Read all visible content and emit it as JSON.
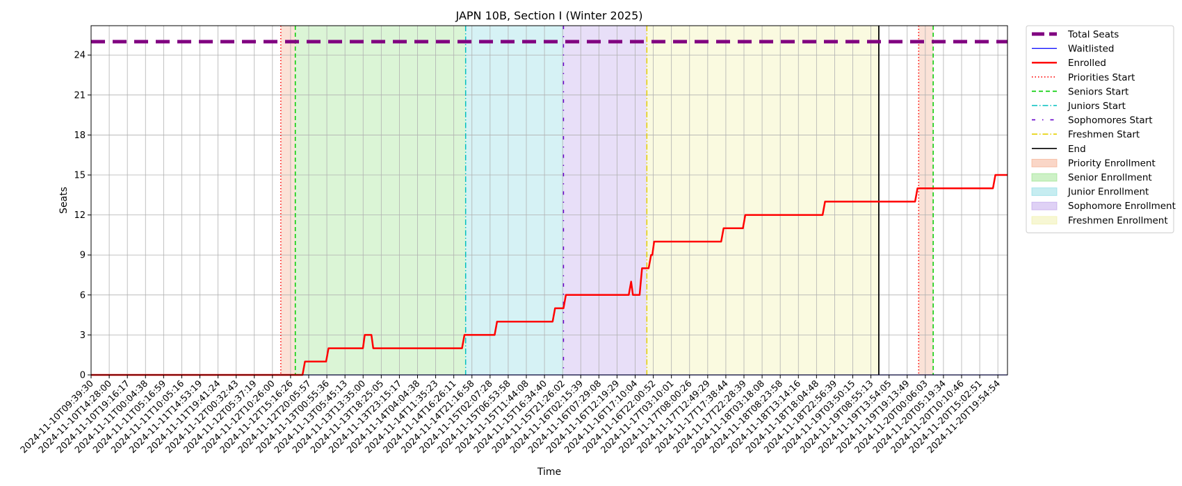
{
  "chart_data": {
    "type": "line",
    "title": "JAPN 10B, Section I (Winter 2025)",
    "xlabel": "Time",
    "ylabel": "Seats",
    "ylim": [
      0,
      26.2
    ],
    "yticks": [
      0,
      3,
      6,
      9,
      12,
      15,
      18,
      21,
      24
    ],
    "grid": true,
    "legend_position": "outside-upper-right",
    "x_start": "2024-11-10T09:39:30",
    "x_end": "2024-11-20T22:30:00",
    "xtick_labels": [
      "2024-11-10T09:39:30",
      "2024-11-10T14:28:00",
      "2024-11-10T19:16:17",
      "2024-11-11T00:04:38",
      "2024-11-11T05:16:59",
      "2024-11-11T10:05:16",
      "2024-11-11T14:53:19",
      "2024-11-11T19:41:24",
      "2024-11-12T00:32:43",
      "2024-11-12T05:37:19",
      "2024-11-12T10:26:00",
      "2024-11-12T15:16:26",
      "2024-11-12T20:05:57",
      "2024-11-13T00:55:36",
      "2024-11-13T05:45:13",
      "2024-11-13T13:35:00",
      "2024-11-13T18:25:05",
      "2024-11-13T23:15:17",
      "2024-11-14T04:04:38",
      "2024-11-14T11:35:23",
      "2024-11-14T16:26:11",
      "2024-11-14T21:16:58",
      "2024-11-15T02:07:28",
      "2024-11-15T06:53:58",
      "2024-11-15T11:44:08",
      "2024-11-15T16:34:40",
      "2024-11-15T21:26:02",
      "2024-11-16T02:15:39",
      "2024-11-16T07:29:08",
      "2024-11-16T12:19:29",
      "2024-11-16T17:10:04",
      "2024-11-16T22:00:52",
      "2024-11-17T03:10:01",
      "2024-11-17T08:00:26",
      "2024-11-17T12:49:29",
      "2024-11-17T17:38:44",
      "2024-11-17T22:28:39",
      "2024-11-18T03:18:08",
      "2024-11-18T08:23:58",
      "2024-11-18T13:14:16",
      "2024-11-18T18:04:48",
      "2024-11-18T22:56:39",
      "2024-11-19T03:50:15",
      "2024-11-19T08:55:13",
      "2024-11-19T13:54:05",
      "2024-11-19T19:13:49",
      "2024-11-20T00:06:03",
      "2024-11-20T05:19:34",
      "2024-11-20T10:10:46",
      "2024-11-20T15:02:51",
      "2024-11-20T19:54:54"
    ],
    "series": [
      {
        "name": "Total Seats",
        "color": "#800080",
        "style": "dashed-thick",
        "value": 25
      },
      {
        "name": "Waitlisted",
        "color": "#0000ff",
        "style": "solid-thin",
        "points": [
          [
            "2024-11-10T09:39:30",
            0
          ],
          [
            "2024-11-20T22:30:00",
            0
          ]
        ]
      },
      {
        "name": "Enrolled",
        "color": "#ff0000",
        "style": "solid",
        "points": [
          [
            "2024-11-10T09:39:30",
            0
          ],
          [
            "2024-11-12T20:00:00",
            0
          ],
          [
            "2024-11-12T20:40:00",
            1
          ],
          [
            "2024-11-13T02:30:00",
            1
          ],
          [
            "2024-11-13T03:10:00",
            2
          ],
          [
            "2024-11-13T12:40:00",
            2
          ],
          [
            "2024-11-13T13:10:00",
            3
          ],
          [
            "2024-11-13T15:00:00",
            3
          ],
          [
            "2024-11-13T15:30:00",
            2
          ],
          [
            "2024-11-14T16:00:00",
            2
          ],
          [
            "2024-11-14T16:40:00",
            3
          ],
          [
            "2024-11-15T01:00:00",
            3
          ],
          [
            "2024-11-15T01:40:00",
            4
          ],
          [
            "2024-11-15T17:00:00",
            4
          ],
          [
            "2024-11-15T17:40:00",
            5
          ],
          [
            "2024-11-15T20:00:00",
            5
          ],
          [
            "2024-11-15T20:40:00",
            6
          ],
          [
            "2024-11-16T10:00:00",
            6
          ],
          [
            "2024-11-16T14:00:00",
            6
          ],
          [
            "2024-11-16T14:40:00",
            7
          ],
          [
            "2024-11-16T15:10:00",
            6
          ],
          [
            "2024-11-16T17:00:00",
            6
          ],
          [
            "2024-11-16T17:40:00",
            8
          ],
          [
            "2024-11-16T19:30:00",
            8
          ],
          [
            "2024-11-16T20:10:00",
            9
          ],
          [
            "2024-11-16T20:30:00",
            9
          ],
          [
            "2024-11-16T21:00:00",
            10
          ],
          [
            "2024-11-17T15:30:00",
            10
          ],
          [
            "2024-11-17T16:10:00",
            11
          ],
          [
            "2024-11-17T21:30:00",
            11
          ],
          [
            "2024-11-17T22:10:00",
            12
          ],
          [
            "2024-11-18T19:30:00",
            12
          ],
          [
            "2024-11-18T20:10:00",
            13
          ],
          [
            "2024-11-19T21:00:00",
            13
          ],
          [
            "2024-11-19T21:40:00",
            14
          ],
          [
            "2024-11-20T18:30:00",
            14
          ],
          [
            "2024-11-20T19:10:00",
            15
          ],
          [
            "2024-11-20T22:30:00",
            15
          ]
        ]
      }
    ],
    "markers": [
      {
        "name": "Priorities Start",
        "color": "#ff0000",
        "style": "dotted",
        "times": [
          "2024-11-12T14:00:00",
          "2024-11-19T22:00:00"
        ]
      },
      {
        "name": "Seniors Start",
        "color": "#00cc00",
        "style": "dashed",
        "times": [
          "2024-11-12T18:00:00",
          "2024-11-20T02:00:00"
        ]
      },
      {
        "name": "Juniors Start",
        "color": "#00bfbf",
        "style": "dashdot",
        "times": [
          "2024-11-14T17:00:00"
        ]
      },
      {
        "name": "Sophomores Start",
        "color": "#6600cc",
        "style": "dashdot-sparse",
        "times": [
          "2024-11-15T20:00:00"
        ]
      },
      {
        "name": "Freshmen Start",
        "color": "#e5d000",
        "style": "dashdot",
        "times": [
          "2024-11-16T19:00:00"
        ]
      },
      {
        "name": "End",
        "color": "#000000",
        "style": "solid",
        "times": [
          "2024-11-19T11:00:00"
        ]
      }
    ],
    "spans": [
      {
        "name": "Priority Enrollment",
        "color": "#f4a582",
        "ranges": [
          [
            "2024-11-12T14:00:00",
            "2024-11-12T18:00:00"
          ],
          [
            "2024-11-19T22:00:00",
            "2024-11-20T02:00:00"
          ]
        ]
      },
      {
        "name": "Senior Enrollment",
        "color": "#90e080",
        "ranges": [
          [
            "2024-11-12T18:00:00",
            "2024-11-14T17:00:00"
          ]
        ]
      },
      {
        "name": "Junior Enrollment",
        "color": "#80d8e0",
        "ranges": [
          [
            "2024-11-14T17:00:00",
            "2024-11-15T20:00:00"
          ]
        ]
      },
      {
        "name": "Sophomore Enrollment",
        "color": "#b89ae8",
        "ranges": [
          [
            "2024-11-15T20:00:00",
            "2024-11-16T19:00:00"
          ]
        ]
      },
      {
        "name": "Freshmen Enrollment",
        "color": "#eeeea0",
        "ranges": [
          [
            "2024-11-16T19:00:00",
            "2024-11-19T11:00:00"
          ]
        ]
      }
    ],
    "legend": [
      "Total Seats",
      "Waitlisted",
      "Enrolled",
      "Priorities Start",
      "Seniors Start",
      "Juniors Start",
      "Sophomores Start",
      "Freshmen Start",
      "End",
      "Priority Enrollment",
      "Senior Enrollment",
      "Junior Enrollment",
      "Sophomore Enrollment",
      "Freshmen Enrollment"
    ]
  }
}
